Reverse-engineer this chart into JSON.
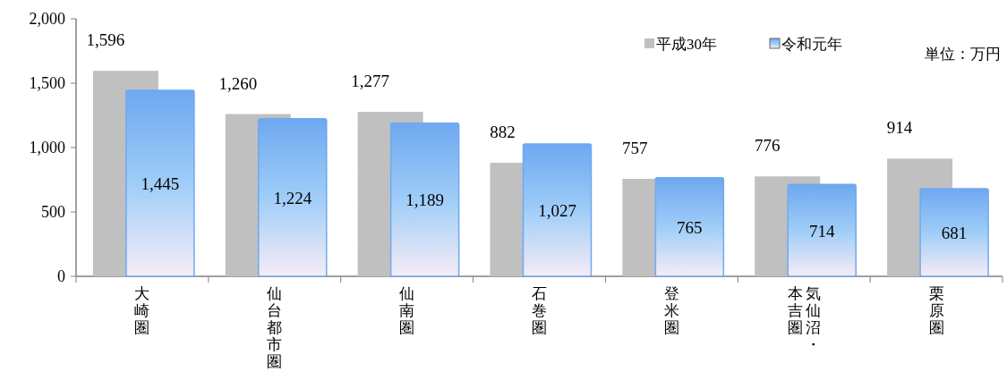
{
  "chart_data": {
    "type": "bar",
    "categories": [
      "大崎圏",
      "仙台都市圏",
      "仙南圏",
      "石巻圏",
      "登米圏",
      "気仙沼・本吉圏",
      "栗原圏"
    ],
    "series": [
      {
        "name": "平成30年",
        "color": "#c0c0c0",
        "values": [
          1596,
          1260,
          1277,
          882,
          757,
          776,
          914
        ],
        "value_labels": [
          "1,596",
          "1,260",
          "1,277",
          "882",
          "757",
          "776",
          "914"
        ]
      },
      {
        "name": "令和元年",
        "color": "#6fa8f0",
        "values": [
          1445,
          1224,
          1189,
          1027,
          765,
          714,
          681
        ],
        "value_labels": [
          "1,445",
          "1,224",
          "1,189",
          "1,027",
          "765",
          "714",
          "681"
        ]
      }
    ],
    "ylim": [
      0,
      2000
    ],
    "yticks": [
      0,
      500,
      {
        "value": 1000,
        "label": "1,000"
      },
      {
        "value": 1500,
        "label": "1,500"
      },
      {
        "value": 2000,
        "label": "2,000"
      }
    ],
    "legend": "top right",
    "grid": false,
    "annotations": [
      "単位：万円"
    ]
  }
}
